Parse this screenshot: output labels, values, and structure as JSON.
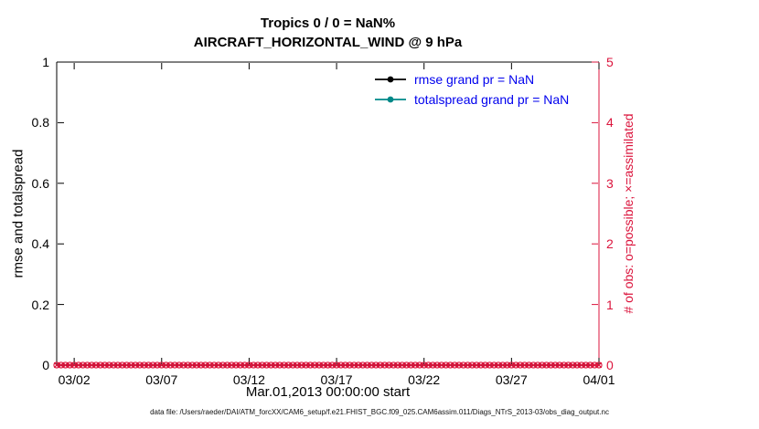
{
  "figure": {
    "footer": "data file: /Users/raeder/DAI/ATM_forcXX/CAM6_setup/f.e21.FHIST_BGC.f09_025.CAM6assim.011/Diags_NTrS_2013-03/obs_diag_output.nc"
  },
  "chart_data": {
    "type": "line",
    "title": "Tropics 0 / 0 = NaN%",
    "subtitle": "AIRCRAFT_HORIZONTAL_WIND @ 9 hPa",
    "xlabel": "Mar.01,2013 00:00:00 start",
    "ylabel_left": "rmse and totalspread",
    "ylabel_right": "# of obs: o=possible; ×=assimilated",
    "x_tick_labels": [
      "03/02",
      "03/07",
      "03/12",
      "03/17",
      "03/22",
      "03/27",
      "04/01"
    ],
    "x_tick_days": [
      1,
      6,
      11,
      16,
      21,
      26,
      31
    ],
    "x_range_days": [
      0,
      31
    ],
    "ylim_left": [
      0,
      1
    ],
    "ylim_right": [
      0,
      5
    ],
    "y_left_ticks": [
      "0",
      "0.2",
      "0.4",
      "0.6",
      "0.8",
      "1"
    ],
    "y_left_tick_values": [
      0,
      0.2,
      0.4,
      0.6,
      0.8,
      1
    ],
    "y_right_ticks": [
      "0",
      "1",
      "2",
      "3",
      "4",
      "5"
    ],
    "y_right_tick_values": [
      0,
      1,
      2,
      3,
      4,
      5
    ],
    "grid": false,
    "legend_position": "top-right-inside",
    "legend_text_color": "#0000EE",
    "right_axis_color": "#DB143C",
    "legend": [
      {
        "label": "rmse grand pr = NaN",
        "color": "#000000"
      },
      {
        "label": "totalspread grand pr = NaN",
        "color": "#008888"
      }
    ],
    "series": [
      {
        "name": "rmse",
        "axis": "left",
        "color": "#000000",
        "values": null
      },
      {
        "name": "totalspread",
        "axis": "left",
        "color": "#008888",
        "values": null
      },
      {
        "name": "possible_obs",
        "axis": "right",
        "marker": "o",
        "color": "#DB143C",
        "constant_value": 0,
        "start_day": 0,
        "end_day": 31,
        "times_per_day": 4
      },
      {
        "name": "assimilated_obs",
        "axis": "right",
        "marker": "×",
        "color": "#DB143C",
        "constant_value": 0,
        "start_day": 0,
        "end_day": 31,
        "times_per_day": 4
      }
    ]
  }
}
